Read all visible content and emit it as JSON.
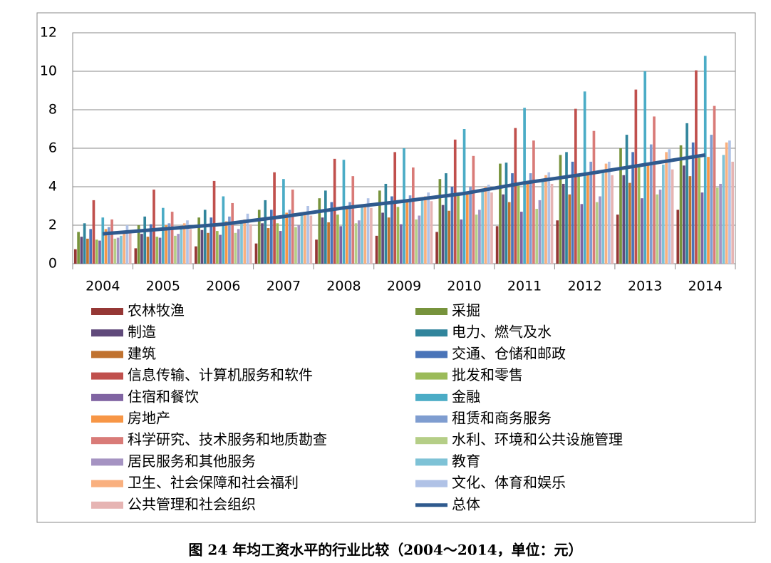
{
  "chart_data": {
    "type": "bar",
    "title": "图 24 年均工资水平的行业比较（2004～2014，单位：元）",
    "categories": [
      "2004",
      "2005",
      "2006",
      "2007",
      "2008",
      "2009",
      "2010",
      "2011",
      "2012",
      "2013",
      "2014"
    ],
    "ylim": [
      0,
      12
    ],
    "yticks": [
      0,
      2,
      4,
      6,
      8,
      10,
      12
    ],
    "grid": true,
    "series": [
      {
        "name": "农林牧渔",
        "color": "#953735",
        "values": [
          0.75,
          0.8,
          0.9,
          1.05,
          1.25,
          1.45,
          1.65,
          1.95,
          2.25,
          2.55,
          2.8
        ]
      },
      {
        "name": "采掘",
        "color": "#77933c",
        "values": [
          1.65,
          2.0,
          2.4,
          2.8,
          3.4,
          3.8,
          4.4,
          5.2,
          5.65,
          6.0,
          6.15
        ]
      },
      {
        "name": "制造",
        "color": "#604a7b",
        "values": [
          1.4,
          1.55,
          1.75,
          2.1,
          2.4,
          2.65,
          3.05,
          3.6,
          4.15,
          4.6,
          5.1
        ]
      },
      {
        "name": "电力、燃气及水",
        "color": "#31859c",
        "values": [
          2.1,
          2.45,
          2.8,
          3.3,
          3.8,
          4.15,
          4.7,
          5.25,
          5.8,
          6.7,
          7.3
        ]
      },
      {
        "name": "建筑",
        "color": "#c0722f",
        "values": [
          1.3,
          1.4,
          1.6,
          1.85,
          2.15,
          2.4,
          2.75,
          3.2,
          3.6,
          4.2,
          4.55
        ]
      },
      {
        "name": "交通、仓储和邮政",
        "color": "#4a74b8",
        "values": [
          1.8,
          2.05,
          2.4,
          2.8,
          3.2,
          3.5,
          4.0,
          4.7,
          5.3,
          5.8,
          6.3
        ]
      },
      {
        "name": "信息传输、计算机服务和软件",
        "color": "#c0504d",
        "values": [
          3.3,
          3.85,
          4.3,
          4.75,
          5.45,
          5.8,
          6.45,
          7.05,
          8.05,
          9.05,
          10.05
        ]
      },
      {
        "name": "批发和零售",
        "color": "#9bbb59",
        "values": [
          1.25,
          1.4,
          1.7,
          2.1,
          2.55,
          2.95,
          3.6,
          4.05,
          4.65,
          5.05,
          5.5
        ]
      },
      {
        "name": "住宿和餐饮",
        "color": "#8064a2",
        "values": [
          1.2,
          1.35,
          1.5,
          1.7,
          1.95,
          2.05,
          2.3,
          2.7,
          3.1,
          3.4,
          3.7
        ]
      },
      {
        "name": "金融",
        "color": "#4bacc6",
        "values": [
          2.4,
          2.9,
          3.5,
          4.4,
          5.4,
          6.0,
          7.0,
          8.1,
          8.95,
          10.0,
          10.8
        ]
      },
      {
        "name": "房地产",
        "color": "#f79646",
        "values": [
          1.8,
          2.0,
          2.2,
          2.65,
          3.0,
          3.2,
          3.6,
          4.25,
          4.65,
          5.1,
          5.55
        ]
      },
      {
        "name": "租赁和商务服务",
        "color": "#7f9dd0",
        "values": [
          1.9,
          2.1,
          2.45,
          2.8,
          3.2,
          3.55,
          4.0,
          4.7,
          5.3,
          6.2,
          6.7
        ]
      },
      {
        "name": "科学研究、技术服务和地质勘查",
        "color": "#d97b78",
        "values": [
          2.3,
          2.7,
          3.15,
          3.85,
          4.55,
          5.0,
          5.6,
          6.4,
          6.9,
          7.65,
          8.2
        ]
      },
      {
        "name": "水利、环境和公共设施管理",
        "color": "#b5ce87",
        "values": [
          1.3,
          1.45,
          1.6,
          1.9,
          2.1,
          2.3,
          2.55,
          2.85,
          3.2,
          3.6,
          3.95
        ]
      },
      {
        "name": "居民服务和其他服务",
        "color": "#a593c2",
        "values": [
          1.35,
          1.55,
          1.8,
          2.0,
          2.25,
          2.5,
          2.8,
          3.3,
          3.5,
          3.85,
          4.15
        ]
      },
      {
        "name": "教育",
        "color": "#7ec2d6",
        "values": [
          1.45,
          1.85,
          2.1,
          2.55,
          3.0,
          3.4,
          3.8,
          4.4,
          4.75,
          5.15,
          5.65
        ]
      },
      {
        "name": "卫生、社会保障和社会福利",
        "color": "#f9b07f",
        "values": [
          1.7,
          2.1,
          2.3,
          2.7,
          3.1,
          3.5,
          4.0,
          4.6,
          5.2,
          5.8,
          6.3
        ]
      },
      {
        "name": "文化、体育和娱乐",
        "color": "#b0c2e6",
        "values": [
          2.0,
          2.25,
          2.6,
          3.0,
          3.4,
          3.7,
          4.1,
          4.75,
          5.3,
          5.95,
          6.4
        ]
      },
      {
        "name": "公共管理和社会组织",
        "color": "#e6b4b3",
        "values": [
          1.6,
          1.8,
          2.05,
          2.5,
          2.9,
          3.25,
          3.7,
          4.15,
          4.6,
          4.9,
          5.3
        ]
      },
      {
        "name": "总体",
        "type": "line",
        "color": "#2f5a8e",
        "values": [
          1.55,
          1.8,
          2.05,
          2.45,
          2.9,
          3.25,
          3.65,
          4.2,
          4.65,
          5.15,
          5.65
        ]
      }
    ]
  }
}
